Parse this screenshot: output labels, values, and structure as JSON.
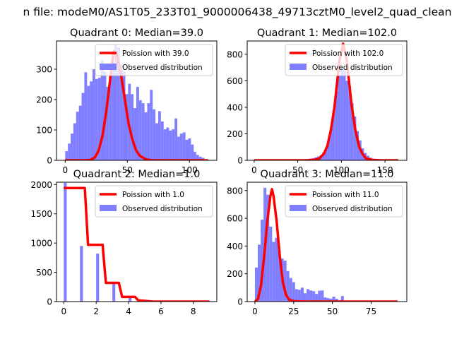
{
  "figure": {
    "suptitle": "n file: modeM0/AS1T05_233T01_9000006438_49713cztM0_level2_quad_clean"
  },
  "colors": {
    "hist": "#7f7fff",
    "line": "#ff0000",
    "frame": "#000000"
  },
  "chart_data": [
    {
      "type": "bar",
      "title": "Quadrant 0: Median=39.0",
      "xlim": [
        -7,
        122
      ],
      "ylim": [
        0,
        393
      ],
      "xticks": [
        0,
        50,
        100
      ],
      "yticks": [
        0,
        100,
        200,
        300
      ],
      "legend_placement": "upper right",
      "series": [
        {
          "name": "Observed distribution",
          "kind": "histogram",
          "bin_width": 2.2,
          "bins": [
            0,
            2.2,
            4.4,
            6.6,
            8.8,
            11,
            13.2,
            15.4,
            17.6,
            19.8,
            22,
            24.2,
            26.4,
            28.6,
            30.8,
            33,
            35.2,
            37.4,
            39.6,
            41.8,
            44,
            46.2,
            48.4,
            50.6,
            52.8,
            55,
            57.2,
            59.4,
            61.6,
            63.8,
            66,
            68.2,
            70.4,
            72.6,
            74.8,
            77,
            79.2,
            81.4,
            83.6,
            85.8,
            88,
            90.2,
            92.4,
            94.6,
            96.8,
            99,
            101.2,
            103.2,
            105.4,
            107.6,
            109.8,
            112
          ],
          "values": [
            30,
            55,
            88,
            122,
            160,
            180,
            222,
            290,
            245,
            260,
            300,
            268,
            272,
            330,
            292,
            242,
            278,
            322,
            380,
            372,
            318,
            292,
            218,
            252,
            218,
            172,
            242,
            198,
            188,
            158,
            188,
            232,
            168,
            122,
            162,
            128,
            102,
            108,
            98,
            102,
            138,
            78,
            88,
            92,
            68,
            72,
            52,
            28,
            18,
            12,
            8,
            3
          ]
        },
        {
          "name": "Poission with 39.0",
          "kind": "line",
          "x": [
            0,
            10,
            15,
            20,
            24,
            27,
            30,
            33,
            36,
            39,
            42,
            45,
            48,
            51,
            54,
            57,
            60,
            65,
            70,
            80,
            90,
            100,
            115
          ],
          "y": [
            0,
            0,
            0,
            1,
            10,
            33,
            80,
            160,
            260,
            360,
            340,
            280,
            200,
            120,
            70,
            33,
            15,
            3,
            0,
            0,
            0,
            0,
            0
          ]
        }
      ]
    },
    {
      "type": "bar",
      "title": "Quadrant 1: Median=102.0",
      "xlim": [
        -8,
        175
      ],
      "ylim": [
        0,
        900
      ],
      "xticks": [
        0,
        50,
        100,
        150
      ],
      "yticks": [
        0,
        200,
        400,
        600,
        800
      ],
      "legend_placement": "upper right",
      "series": [
        {
          "name": "Observed distribution",
          "kind": "histogram",
          "bin_width": 3,
          "bins": [
            60,
            63,
            66,
            69,
            72,
            75,
            78,
            81,
            84,
            87,
            90,
            93,
            96,
            99,
            102,
            105,
            108,
            111,
            114,
            117,
            120,
            123,
            126,
            129,
            132,
            135,
            138,
            141,
            144
          ],
          "values": [
            8,
            12,
            15,
            22,
            30,
            38,
            60,
            95,
            150,
            240,
            380,
            520,
            640,
            700,
            680,
            600,
            560,
            430,
            330,
            220,
            150,
            90,
            55,
            35,
            20,
            12,
            8,
            5,
            3
          ]
        },
        {
          "name": "Poission with 102.0",
          "kind": "line",
          "x": [
            0,
            60,
            70,
            75,
            80,
            84,
            88,
            92,
            95,
            98,
            102,
            106,
            109,
            112,
            116,
            120,
            124,
            128,
            135,
            145,
            165
          ],
          "y": [
            0,
            0,
            5,
            15,
            50,
            110,
            230,
            400,
            580,
            760,
            880,
            760,
            580,
            400,
            230,
            110,
            50,
            15,
            3,
            0,
            0
          ]
        }
      ]
    },
    {
      "type": "bar",
      "title": "Quadrant 2: Median=1.0",
      "xlim": [
        -0.45,
        9.45
      ],
      "ylim": [
        0,
        2040
      ],
      "xticks": [
        0,
        2,
        4,
        6,
        8
      ],
      "yticks": [
        0,
        500,
        1000,
        1500,
        2000
      ],
      "legend_placement": "upper right",
      "series": [
        {
          "name": "Observed distribution",
          "kind": "histogram",
          "bin_width": 0.18,
          "bins": [
            0,
            1,
            2,
            3,
            4,
            5
          ],
          "values": [
            2030,
            950,
            820,
            300,
            80,
            15
          ]
        },
        {
          "name": "Poission with 1.0",
          "kind": "line",
          "x": [
            0,
            1.3,
            1.5,
            2.4,
            2.6,
            3.4,
            3.6,
            4.4,
            4.6,
            5.5,
            9
          ],
          "y": [
            1940,
            1940,
            970,
            970,
            320,
            320,
            80,
            80,
            20,
            0,
            0
          ]
        }
      ]
    },
    {
      "type": "bar",
      "title": "Quadrant 3: Median=11.0",
      "xlim": [
        -5,
        98
      ],
      "ylim": [
        0,
        860
      ],
      "xticks": [
        0,
        25,
        50,
        75
      ],
      "yticks": [
        0,
        200,
        400,
        600,
        800
      ],
      "legend_placement": "upper right",
      "series": [
        {
          "name": "Observed distribution",
          "kind": "histogram",
          "bin_width": 1.85,
          "bins": [
            0,
            1.85,
            3.7,
            5.55,
            7.4,
            9.25,
            11.1,
            12.95,
            14.8,
            16.65,
            18.5,
            20.35,
            22.2,
            24.05,
            25.9,
            27.75,
            29.6,
            31.45,
            33.3,
            35.15,
            37,
            38.85,
            40.7,
            42.55,
            44.4,
            46.25,
            48.1,
            49.95,
            51.8,
            53.65,
            55.5
          ],
          "values": [
            245,
            410,
            590,
            820,
            770,
            540,
            430,
            460,
            370,
            310,
            295,
            220,
            170,
            140,
            90,
            85,
            100,
            60,
            90,
            80,
            75,
            55,
            78,
            80,
            30,
            25,
            20,
            35,
            20,
            10,
            40
          ]
        },
        {
          "name": "Poission with 11.0",
          "kind": "line",
          "x": [
            0,
            2,
            4,
            6,
            8,
            10,
            11,
            12,
            14,
            16,
            18,
            20,
            22,
            25,
            30,
            40,
            92
          ],
          "y": [
            0,
            20,
            120,
            330,
            580,
            760,
            810,
            760,
            580,
            330,
            140,
            50,
            15,
            3,
            0,
            0,
            0
          ]
        }
      ]
    }
  ]
}
